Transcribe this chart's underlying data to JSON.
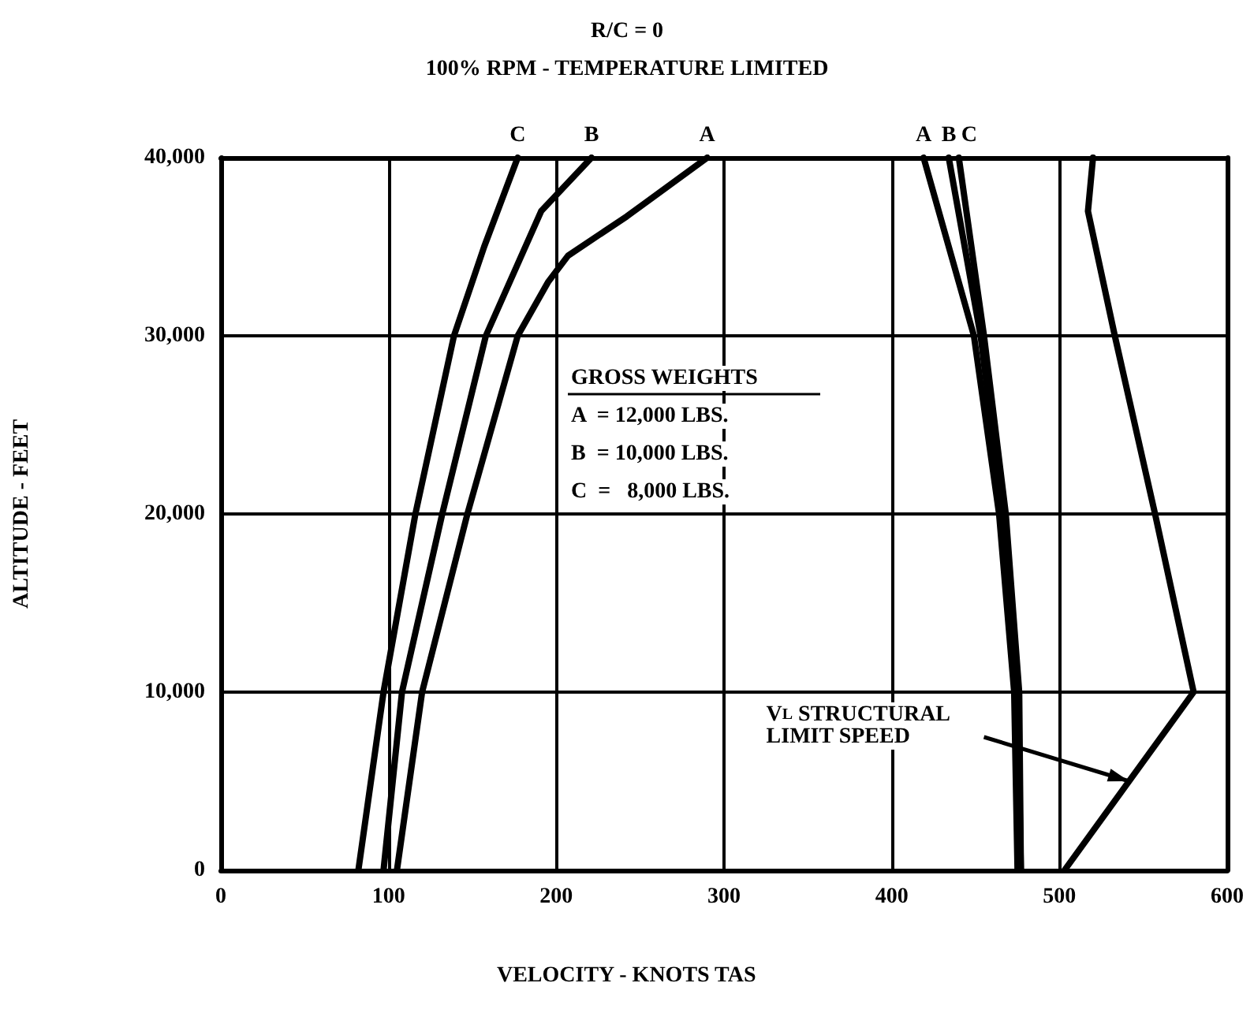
{
  "chart_data": {
    "type": "line",
    "title": "R/C = 0",
    "subtitle": "100% RPM - TEMPERATURE LIMITED",
    "xlabel": "VELOCITY - KNOTS TAS",
    "ylabel": "ALTITUDE - FEET",
    "xlim": [
      0,
      600
    ],
    "xticks": [
      0,
      100,
      200,
      300,
      400,
      500,
      600
    ],
    "ylim": [
      0,
      40000
    ],
    "yticks": [
      0,
      {
        "value": 10000,
        "label": "10,000"
      },
      {
        "value": 20000,
        "label": "20,000"
      },
      {
        "value": 30000,
        "label": "30,000"
      },
      {
        "value": 40000,
        "label": "40,000"
      }
    ],
    "grid": true,
    "marker": "none",
    "line_style": "solid",
    "series": [
      {
        "name": "C",
        "color": "#000000",
        "x": [
          82,
          97,
          116,
          139,
          157,
          177
        ],
        "values": [
          0,
          10000,
          20000,
          30000,
          35000,
          40000
        ]
      },
      {
        "name": "B",
        "color": "#000000",
        "x": [
          97,
          108,
          132,
          158,
          191,
          221
        ],
        "values": [
          0,
          10000,
          20000,
          30000,
          37000,
          40000
        ]
      },
      {
        "name": "A",
        "color": "#000000",
        "x": [
          105,
          120,
          147,
          177,
          195,
          207,
          242,
          290
        ],
        "values": [
          0,
          10000,
          20000,
          30000,
          33000,
          34500,
          36700,
          40000
        ]
      },
      {
        "name": "A",
        "color": "#000000",
        "x": [
          475,
          473,
          464,
          449,
          419
        ],
        "values": [
          0,
          10000,
          20000,
          30000,
          40000
        ]
      },
      {
        "name": "B",
        "color": "#000000",
        "x": [
          477,
          475,
          466,
          453,
          434
        ],
        "values": [
          0,
          10000,
          20000,
          30000,
          40000
        ]
      },
      {
        "name": "C",
        "color": "#000000",
        "x": [
          477,
          476,
          468,
          455,
          440
        ],
        "values": [
          0,
          10000,
          20000,
          30000,
          40000
        ]
      },
      {
        "color": "#000000",
        "x": [
          503,
          580,
          557,
          533,
          517,
          520
        ],
        "values": [
          0,
          10000,
          20000,
          30000,
          37000,
          40000
        ]
      }
    ],
    "annotations": [
      "GROSS WEIGHTS",
      "A  = 12,000 LBS.",
      "B  = 10,000 LBS.",
      "C  =   8,000 LBS.",
      "V$_{L}$ STRUCTURAL\nLIMIT SPEED"
    ]
  }
}
